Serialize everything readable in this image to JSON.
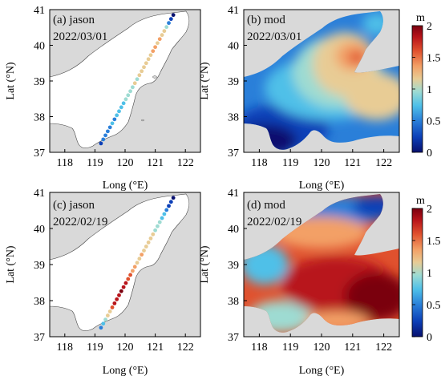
{
  "figure": {
    "colorbar_unit": "m",
    "colorbar_ticks": [
      "2",
      "1.5",
      "1",
      "0.5",
      "0"
    ],
    "colormap": [
      "#08106e",
      "#0c3fb7",
      "#2a7fd9",
      "#4fc0e8",
      "#9edbd2",
      "#e8cc95",
      "#f3a066",
      "#e0512e",
      "#b8141a",
      "#7a0010"
    ]
  },
  "chart_data": [
    {
      "type": "scatter",
      "id": "a",
      "title": "(a) jason",
      "date": "2022/03/01",
      "xlabel": "Long (°E)",
      "ylabel": "Lat (°N)",
      "xticks": [
        "118",
        "119",
        "120",
        "121",
        "122"
      ],
      "yticks": [
        "41",
        "40",
        "39",
        "38",
        "37"
      ],
      "xlim": [
        117.5,
        122.5
      ],
      "ylim": [
        37,
        41
      ],
      "track_start": [
        119.2,
        37.25
      ],
      "track_end": [
        121.6,
        40.85
      ],
      "values_m": [
        0.2,
        0.4,
        0.5,
        0.4,
        0.5,
        0.6,
        0.5,
        0.6,
        0.7,
        0.6,
        0.7,
        0.8,
        0.8,
        0.9,
        0.9,
        1.0,
        0.9,
        1.0,
        1.1,
        1.1,
        1.2,
        1.2,
        1.2,
        1.3,
        1.3,
        1.2,
        1.3,
        1.2,
        1.1,
        0.9,
        0.5,
        0.2,
        0.1
      ]
    },
    {
      "type": "heatmap",
      "id": "b",
      "title": "(b) mod",
      "date": "2022/03/01",
      "xlabel": "Long (°E)",
      "ylabel": "Lat (°N)",
      "xticks": [
        "118",
        "119",
        "120",
        "121",
        "122"
      ],
      "yticks": [
        "41",
        "40",
        "39",
        "38",
        "37"
      ],
      "xlim": [
        117.5,
        122.5
      ],
      "ylim": [
        37,
        41
      ],
      "clim": [
        0,
        2
      ],
      "max_region_m": 1.6,
      "max_region_location": [
        120.9,
        39.6
      ],
      "min_region_m": 0.1,
      "min_region_location": [
        119.0,
        37.3
      ]
    },
    {
      "type": "scatter",
      "id": "c",
      "title": "(c) jason",
      "date": "2022/02/19",
      "xlabel": "Long (°E)",
      "ylabel": "Lat (°N)",
      "xticks": [
        "118",
        "119",
        "120",
        "121",
        "122"
      ],
      "yticks": [
        "41",
        "40",
        "39",
        "38",
        "37"
      ],
      "xlim": [
        117.5,
        122.5
      ],
      "ylim": [
        37,
        41
      ],
      "track_start": [
        119.2,
        37.25
      ],
      "track_end": [
        121.6,
        40.85
      ],
      "values_m": [
        0.4,
        0.6,
        0.8,
        1.0,
        1.2,
        1.5,
        1.7,
        1.8,
        1.8,
        1.9,
        1.8,
        1.7,
        1.6,
        1.5,
        1.4,
        1.3,
        1.2,
        1.2,
        1.3,
        1.2,
        1.1,
        1.1,
        1.0,
        1.0,
        0.9,
        0.9,
        0.8,
        0.7,
        0.6,
        0.5,
        0.3,
        0.2,
        0.1
      ]
    },
    {
      "type": "heatmap",
      "id": "d",
      "title": "(d) mod",
      "date": "2022/02/19",
      "xlabel": "Long (°E)",
      "ylabel": "Lat (°N)",
      "xticks": [
        "118",
        "119",
        "120",
        "121",
        "122"
      ],
      "yticks": [
        "41",
        "40",
        "39",
        "38",
        "37"
      ],
      "xlim": [
        117.5,
        122.5
      ],
      "ylim": [
        37,
        41
      ],
      "clim": [
        0,
        2
      ],
      "max_region_m": 2.0,
      "max_region_location": [
        121.9,
        38.1
      ],
      "min_region_m": 0.1,
      "min_region_location": [
        121.2,
        40.8
      ]
    }
  ]
}
